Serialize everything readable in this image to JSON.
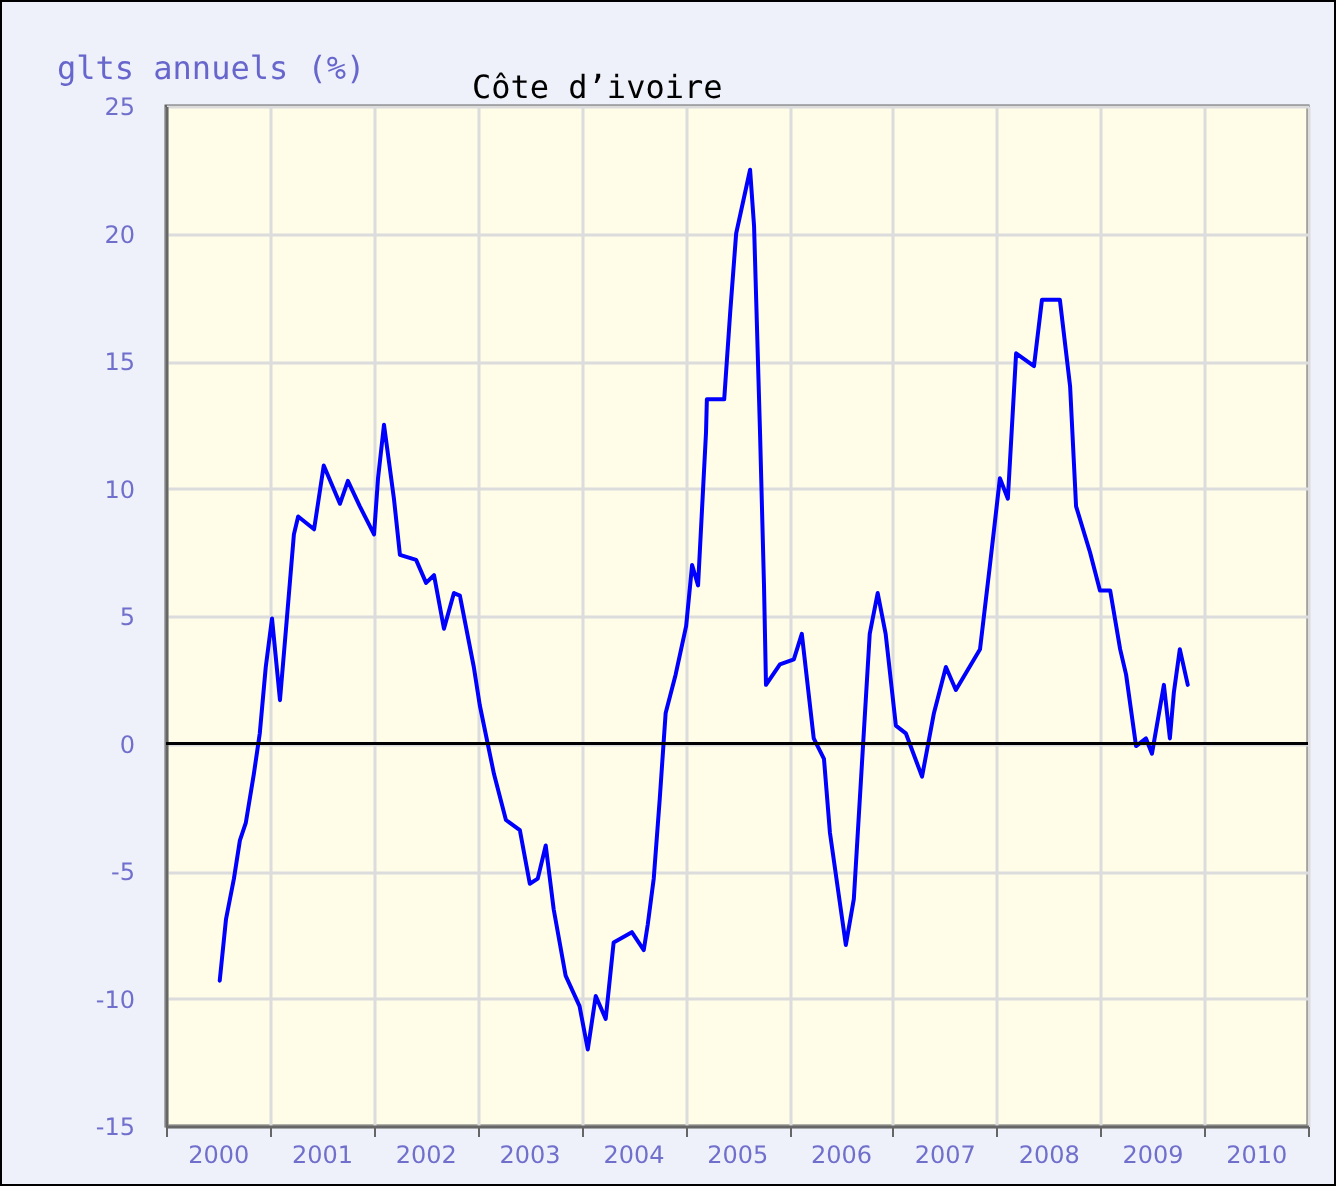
{
  "chart_data": {
    "type": "line",
    "title": "Côte d’ivoire",
    "ylabel": "glts annuels (%)",
    "x": [
      "2000-07-08",
      "2000-07-30",
      "2000-08-27",
      "2000-09-17",
      "2000-10-08",
      "2000-11-05",
      "2000-11-26",
      "2000-12-17",
      "2001-01-08",
      "2001-02-05",
      "2001-02-27",
      "2001-03-26",
      "2001-04-10",
      "2001-06-05",
      "2001-07-09",
      "2001-09-04",
      "2001-10-02",
      "2001-11-13",
      "2002-01-02",
      "2002-01-16",
      "2002-02-06",
      "2002-03-13",
      "2002-04-03",
      "2002-05-30",
      "2002-07-04",
      "2002-08-01",
      "2002-09-05",
      "2002-10-10",
      "2002-10-31",
      "2002-12-19",
      "2003-01-09",
      "2003-02-28",
      "2003-04-11",
      "2003-05-30",
      "2003-07-04",
      "2003-08-01",
      "2003-08-29",
      "2003-09-26",
      "2003-11-07",
      "2003-12-26",
      "2004-01-24",
      "2004-02-21",
      "2004-03-27",
      "2004-04-24",
      "2004-06-27",
      "2004-08-08",
      "2004-08-22",
      "2004-09-12",
      "2004-10-03",
      "2004-10-24",
      "2004-11-28",
      "2005-01-04",
      "2005-01-25",
      "2005-02-15",
      "2005-03-15",
      "2005-03-18",
      "2005-05-18",
      "2005-06-08",
      "2005-06-29",
      "2005-08-17",
      "2005-08-31",
      "2005-09-21",
      "2005-10-05",
      "2005-10-12",
      "2005-11-30",
      "2006-01-18",
      "2006-02-15",
      "2006-03-29",
      "2006-05-04",
      "2006-05-25",
      "2006-07-20",
      "2006-08-17",
      "2006-09-21",
      "2006-10-12",
      "2006-11-09",
      "2006-12-07",
      "2007-01-12",
      "2007-02-16",
      "2007-04-14",
      "2007-05-26",
      "2007-07-07",
      "2007-08-11",
      "2007-11-04",
      "2007-12-09",
      "2008-01-13",
      "2008-02-10",
      "2008-03-10",
      "2008-05-12",
      "2008-06-09",
      "2008-08-11",
      "2008-09-16",
      "2008-10-07",
      "2008-11-25",
      "2008-12-30",
      "2009-02-04",
      "2009-03-11",
      "2009-04-01",
      "2009-05-06",
      "2009-06-10",
      "2009-07-01",
      "2009-08-12",
      "2009-09-02",
      "2009-09-16",
      "2009-10-07",
      "2009-11-04"
    ],
    "series": [
      {
        "color": "#0000ff",
        "values": [
          -9.3,
          -6.9,
          -5.3,
          -3.8,
          -3.1,
          -1.2,
          0.4,
          3.0,
          4.9,
          1.7,
          4.6,
          8.2,
          8.9,
          8.4,
          10.9,
          9.4,
          10.3,
          9.3,
          8.2,
          10.4,
          12.5,
          9.6,
          7.4,
          7.2,
          6.3,
          6.6,
          4.5,
          5.9,
          5.8,
          3.0,
          1.5,
          -1.2,
          -3.0,
          -3.4,
          -5.5,
          -5.3,
          -4.0,
          -6.5,
          -9.1,
          -10.3,
          -12.0,
          -9.9,
          -10.8,
          -7.8,
          -7.4,
          -8.1,
          -7.1,
          -5.3,
          -2.2,
          1.2,
          2.7,
          4.6,
          7.0,
          6.2,
          12.2,
          13.5,
          13.5,
          16.9,
          20.0,
          22.5,
          20.3,
          12.2,
          6.2,
          2.3,
          3.1,
          3.3,
          4.3,
          0.2,
          -0.6,
          -3.5,
          -7.9,
          -6.1,
          0.4,
          4.3,
          5.9,
          4.3,
          0.7,
          0.4,
          -1.3,
          1.2,
          3.0,
          2.1,
          3.7,
          7.0,
          10.4,
          9.6,
          15.3,
          14.8,
          17.4,
          17.4,
          14.0,
          9.3,
          7.5,
          6.0,
          6.0,
          3.7,
          2.7,
          -0.1,
          0.2,
          -0.4,
          2.3,
          0.2,
          2.0,
          3.7,
          2.3
        ]
      }
    ],
    "xlim": [
      "2000-01-01",
      "2011-01-01"
    ],
    "xticks": [
      {
        "value": "2000-01-01",
        "label": null
      },
      {
        "value": "2000-07-01",
        "label": "2000"
      },
      {
        "value": "2001-01-01",
        "label": null
      },
      {
        "value": "2001-07-01",
        "label": "2001"
      },
      {
        "value": "2002-01-01",
        "label": null
      },
      {
        "value": "2002-07-01",
        "label": "2002"
      },
      {
        "value": "2003-01-01",
        "label": null
      },
      {
        "value": "2003-07-01",
        "label": "2003"
      },
      {
        "value": "2004-01-01",
        "label": null
      },
      {
        "value": "2004-07-01",
        "label": "2004"
      },
      {
        "value": "2005-01-01",
        "label": null
      },
      {
        "value": "2005-07-01",
        "label": "2005"
      },
      {
        "value": "2006-01-01",
        "label": null
      },
      {
        "value": "2006-07-01",
        "label": "2006"
      },
      {
        "value": "2007-01-01",
        "label": null
      },
      {
        "value": "2007-07-01",
        "label": "2007"
      },
      {
        "value": "2008-01-01",
        "label": null
      },
      {
        "value": "2008-07-01",
        "label": "2008"
      },
      {
        "value": "2009-01-01",
        "label": null
      },
      {
        "value": "2009-07-01",
        "label": "2009"
      },
      {
        "value": "2010-01-01",
        "label": null
      },
      {
        "value": "2010-07-01",
        "label": "2010"
      },
      {
        "value": "2011-01-01",
        "label": null
      }
    ],
    "ylim": [
      -15,
      25
    ],
    "yticks": [
      -15,
      -10,
      -5,
      0,
      5,
      10,
      15,
      20,
      25
    ],
    "ref_lines": [
      {
        "axis": "y",
        "value": 0,
        "color": "#000000"
      }
    ],
    "grid": true,
    "legend": false,
    "marker": "none",
    "line_style": "solid"
  }
}
